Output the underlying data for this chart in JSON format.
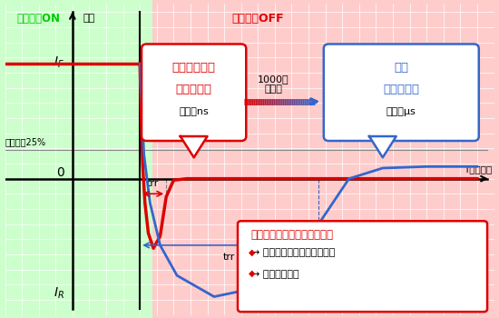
{
  "title_on": "スイッチON",
  "title_off": "スイッチOFF",
  "xlabel": "電流",
  "time_label": "T（時間）",
  "label_IF": "I_F",
  "label_IR": "I_R",
  "label_0": "0",
  "label_25pct": "ピークの25%",
  "switching_diode_line1": "スイッチング",
  "switching_diode_line2": "ダイオード",
  "switching_diode_sub": "単位：ns",
  "rectifier_diode_line1": "整流",
  "rectifier_diode_line2": "ダイオード",
  "rectifier_diode_sub": "単位：μs",
  "diff_label": "1000倍\nの差！",
  "trr_label": "trr",
  "box_title": "スイッチングスピードが速い",
  "box_bullet1": "面積（消費電力）が小さい",
  "box_bullet2": "発熱が少ない",
  "bg_left": "#ccffcc",
  "bg_right": "#ffcccc",
  "red_color": "#dd0000",
  "blue_color": "#3366cc",
  "green_color": "#00cc00"
}
